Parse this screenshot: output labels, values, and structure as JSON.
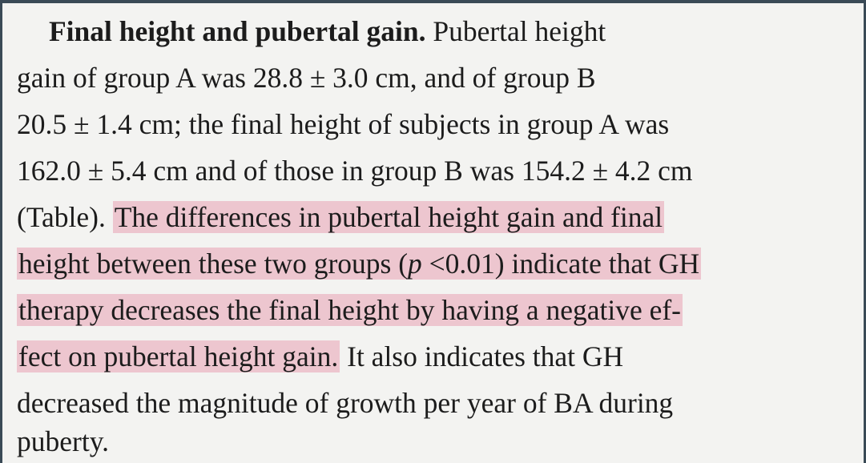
{
  "paragraph": {
    "heading": "Final height and pubertal gain.",
    "lines": [
      {
        "segments": [
          {
            "text": "Pubertal height",
            "hl": false
          }
        ]
      },
      {
        "segments": [
          {
            "text": "gain of group A was 28.8 ± 3.0 cm, and of group B",
            "hl": false
          }
        ]
      },
      {
        "segments": [
          {
            "text": "20.5 ± 1.4 cm; the final height of subjects in group A was",
            "hl": false
          }
        ]
      },
      {
        "segments": [
          {
            "text": "162.0 ± 5.4 cm and of those in group B was 154.2 ± 4.2 cm",
            "hl": false
          }
        ]
      },
      {
        "segments": [
          {
            "text": "(Table). ",
            "hl": false
          },
          {
            "text": "The differences in pubertal height gain and final",
            "hl": true
          }
        ]
      },
      {
        "segments": [
          {
            "text": "height between these two groups (",
            "hl": true
          },
          {
            "text": "p",
            "hl": true,
            "italic": true
          },
          {
            "text": " <0.01) indicate that GH",
            "hl": true
          }
        ]
      },
      {
        "segments": [
          {
            "text": "therapy decreases the final height by having a negative ef-",
            "hl": true
          }
        ]
      },
      {
        "segments": [
          {
            "text": "fect on pubertal height gain.",
            "hl": true
          },
          {
            "text": " It also indicates that GH",
            "hl": false
          }
        ]
      },
      {
        "segments": [
          {
            "text": "decreased the magnitude of growth per year of BA during",
            "hl": false
          }
        ]
      },
      {
        "segments": [
          {
            "text": "puberty.",
            "hl": false
          }
        ]
      }
    ]
  },
  "colors": {
    "highlight": "#e8a0b2",
    "text": "#1c1c1c",
    "page": "#f3f3f1"
  }
}
